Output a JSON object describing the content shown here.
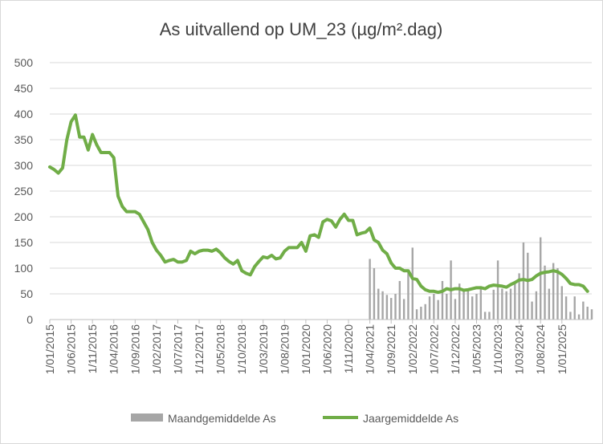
{
  "chart_data": {
    "type": "bar+line",
    "title": "As uitvallend op UM_23 (µg/m².dag)",
    "xlabel": "",
    "ylabel": "",
    "ylim": [
      0,
      500
    ],
    "yticks": [
      0,
      50,
      100,
      150,
      200,
      250,
      300,
      350,
      400,
      450,
      500
    ],
    "x_tick_labels": [
      "1/01/2015",
      "1/06/2015",
      "1/11/2015",
      "1/04/2016",
      "1/09/2016",
      "1/02/2017",
      "1/07/2017",
      "1/12/2017",
      "1/05/2018",
      "1/10/2018",
      "1/03/2019",
      "1/08/2019",
      "1/01/2020",
      "1/06/2020",
      "1/11/2020",
      "1/04/2021",
      "1/09/2021",
      "1/02/2022",
      "1/07/2022",
      "1/12/2022",
      "1/05/2023",
      "1/10/2023",
      "1/03/2024",
      "1/08/2024",
      "1/01/2025"
    ],
    "x_start": "2015-01",
    "x_end": "2025-08",
    "grid": "horizontal",
    "legend_position": "bottom",
    "series": [
      {
        "name": "Maandgemiddelde As",
        "type": "bar",
        "color": "#a6a6a6",
        "points": [
          [
            "2021-04",
            118
          ],
          [
            "2021-05",
            100
          ],
          [
            "2021-06",
            60
          ],
          [
            "2021-07",
            55
          ],
          [
            "2021-08",
            48
          ],
          [
            "2021-09",
            42
          ],
          [
            "2021-10",
            50
          ],
          [
            "2021-11",
            75
          ],
          [
            "2021-12",
            40
          ],
          [
            "2022-01",
            97
          ],
          [
            "2022-02",
            140
          ],
          [
            "2022-03",
            20
          ],
          [
            "2022-04",
            25
          ],
          [
            "2022-05",
            30
          ],
          [
            "2022-06",
            45
          ],
          [
            "2022-07",
            50
          ],
          [
            "2022-08",
            38
          ],
          [
            "2022-09",
            75
          ],
          [
            "2022-10",
            50
          ],
          [
            "2022-11",
            115
          ],
          [
            "2022-12",
            40
          ],
          [
            "2023-01",
            70
          ],
          [
            "2023-02",
            55
          ],
          [
            "2023-03",
            60
          ],
          [
            "2023-04",
            45
          ],
          [
            "2023-05",
            50
          ],
          [
            "2023-06",
            65
          ],
          [
            "2023-07",
            15
          ],
          [
            "2023-08",
            15
          ],
          [
            "2023-09",
            58
          ],
          [
            "2023-10",
            115
          ],
          [
            "2023-11",
            60
          ],
          [
            "2023-12",
            55
          ],
          [
            "2024-01",
            60
          ],
          [
            "2024-02",
            70
          ],
          [
            "2024-03",
            90
          ],
          [
            "2024-04",
            150
          ],
          [
            "2024-05",
            130
          ],
          [
            "2024-06",
            35
          ],
          [
            "2024-07",
            55
          ],
          [
            "2024-08",
            160
          ],
          [
            "2024-09",
            105
          ],
          [
            "2024-10",
            60
          ],
          [
            "2024-11",
            110
          ],
          [
            "2024-12",
            100
          ],
          [
            "2025-01",
            65
          ],
          [
            "2025-02",
            45
          ],
          [
            "2025-03",
            15
          ],
          [
            "2025-04",
            45
          ],
          [
            "2025-05",
            10
          ],
          [
            "2025-06",
            35
          ],
          [
            "2025-07",
            25
          ],
          [
            "2025-08",
            20
          ]
        ]
      },
      {
        "name": "Jaargemiddelde As",
        "type": "line",
        "color": "#70ad47",
        "points": [
          [
            "2015-01",
            297
          ],
          [
            "2015-02",
            292
          ],
          [
            "2015-03",
            285
          ],
          [
            "2015-04",
            295
          ],
          [
            "2015-05",
            350
          ],
          [
            "2015-06",
            385
          ],
          [
            "2015-07",
            398
          ],
          [
            "2015-08",
            355
          ],
          [
            "2015-09",
            355
          ],
          [
            "2015-10",
            330
          ],
          [
            "2015-11",
            360
          ],
          [
            "2015-12",
            340
          ],
          [
            "2016-01",
            325
          ],
          [
            "2016-02",
            325
          ],
          [
            "2016-03",
            325
          ],
          [
            "2016-04",
            315
          ],
          [
            "2016-05",
            240
          ],
          [
            "2016-06",
            220
          ],
          [
            "2016-07",
            210
          ],
          [
            "2016-08",
            210
          ],
          [
            "2016-09",
            210
          ],
          [
            "2016-10",
            205
          ],
          [
            "2016-11",
            190
          ],
          [
            "2016-12",
            175
          ],
          [
            "2017-01",
            150
          ],
          [
            "2017-02",
            135
          ],
          [
            "2017-03",
            125
          ],
          [
            "2017-04",
            112
          ],
          [
            "2017-05",
            115
          ],
          [
            "2017-06",
            117
          ],
          [
            "2017-07",
            112
          ],
          [
            "2017-08",
            112
          ],
          [
            "2017-09",
            115
          ],
          [
            "2017-10",
            133
          ],
          [
            "2017-11",
            128
          ],
          [
            "2017-12",
            133
          ],
          [
            "2018-01",
            135
          ],
          [
            "2018-02",
            135
          ],
          [
            "2018-03",
            133
          ],
          [
            "2018-04",
            137
          ],
          [
            "2018-05",
            130
          ],
          [
            "2018-06",
            120
          ],
          [
            "2018-07",
            113
          ],
          [
            "2018-08",
            108
          ],
          [
            "2018-09",
            115
          ],
          [
            "2018-10",
            95
          ],
          [
            "2018-11",
            90
          ],
          [
            "2018-12",
            87
          ],
          [
            "2019-01",
            103
          ],
          [
            "2019-02",
            113
          ],
          [
            "2019-03",
            122
          ],
          [
            "2019-04",
            120
          ],
          [
            "2019-05",
            125
          ],
          [
            "2019-06",
            118
          ],
          [
            "2019-07",
            120
          ],
          [
            "2019-08",
            133
          ],
          [
            "2019-09",
            140
          ],
          [
            "2019-10",
            140
          ],
          [
            "2019-11",
            140
          ],
          [
            "2019-12",
            150
          ],
          [
            "2020-01",
            133
          ],
          [
            "2020-02",
            163
          ],
          [
            "2020-03",
            165
          ],
          [
            "2020-04",
            160
          ],
          [
            "2020-05",
            190
          ],
          [
            "2020-06",
            195
          ],
          [
            "2020-07",
            192
          ],
          [
            "2020-08",
            180
          ],
          [
            "2020-09",
            195
          ],
          [
            "2020-10",
            205
          ],
          [
            "2020-11",
            193
          ],
          [
            "2020-12",
            193
          ],
          [
            "2021-01",
            165
          ],
          [
            "2021-02",
            168
          ],
          [
            "2021-03",
            170
          ],
          [
            "2021-04",
            178
          ],
          [
            "2021-05",
            155
          ],
          [
            "2021-06",
            150
          ],
          [
            "2021-07",
            135
          ],
          [
            "2021-08",
            128
          ],
          [
            "2021-09",
            110
          ],
          [
            "2021-10",
            100
          ],
          [
            "2021-11",
            100
          ],
          [
            "2021-12",
            95
          ],
          [
            "2022-01",
            95
          ],
          [
            "2022-02",
            80
          ],
          [
            "2022-03",
            78
          ],
          [
            "2022-04",
            65
          ],
          [
            "2022-05",
            58
          ],
          [
            "2022-06",
            55
          ],
          [
            "2022-07",
            55
          ],
          [
            "2022-08",
            53
          ],
          [
            "2022-09",
            55
          ],
          [
            "2022-10",
            60
          ],
          [
            "2022-11",
            58
          ],
          [
            "2022-12",
            60
          ],
          [
            "2023-01",
            60
          ],
          [
            "2023-02",
            57
          ],
          [
            "2023-03",
            58
          ],
          [
            "2023-04",
            60
          ],
          [
            "2023-05",
            62
          ],
          [
            "2023-06",
            62
          ],
          [
            "2023-07",
            60
          ],
          [
            "2023-08",
            65
          ],
          [
            "2023-09",
            67
          ],
          [
            "2023-10",
            66
          ],
          [
            "2023-11",
            65
          ],
          [
            "2023-12",
            63
          ],
          [
            "2024-01",
            68
          ],
          [
            "2024-02",
            72
          ],
          [
            "2024-03",
            77
          ],
          [
            "2024-04",
            78
          ],
          [
            "2024-05",
            76
          ],
          [
            "2024-06",
            78
          ],
          [
            "2024-07",
            85
          ],
          [
            "2024-08",
            90
          ],
          [
            "2024-09",
            92
          ],
          [
            "2024-10",
            93
          ],
          [
            "2024-11",
            95
          ],
          [
            "2024-12",
            93
          ],
          [
            "2025-01",
            88
          ],
          [
            "2025-02",
            80
          ],
          [
            "2025-03",
            70
          ],
          [
            "2025-04",
            68
          ],
          [
            "2025-05",
            68
          ],
          [
            "2025-06",
            65
          ],
          [
            "2025-07",
            55
          ]
        ]
      }
    ]
  }
}
